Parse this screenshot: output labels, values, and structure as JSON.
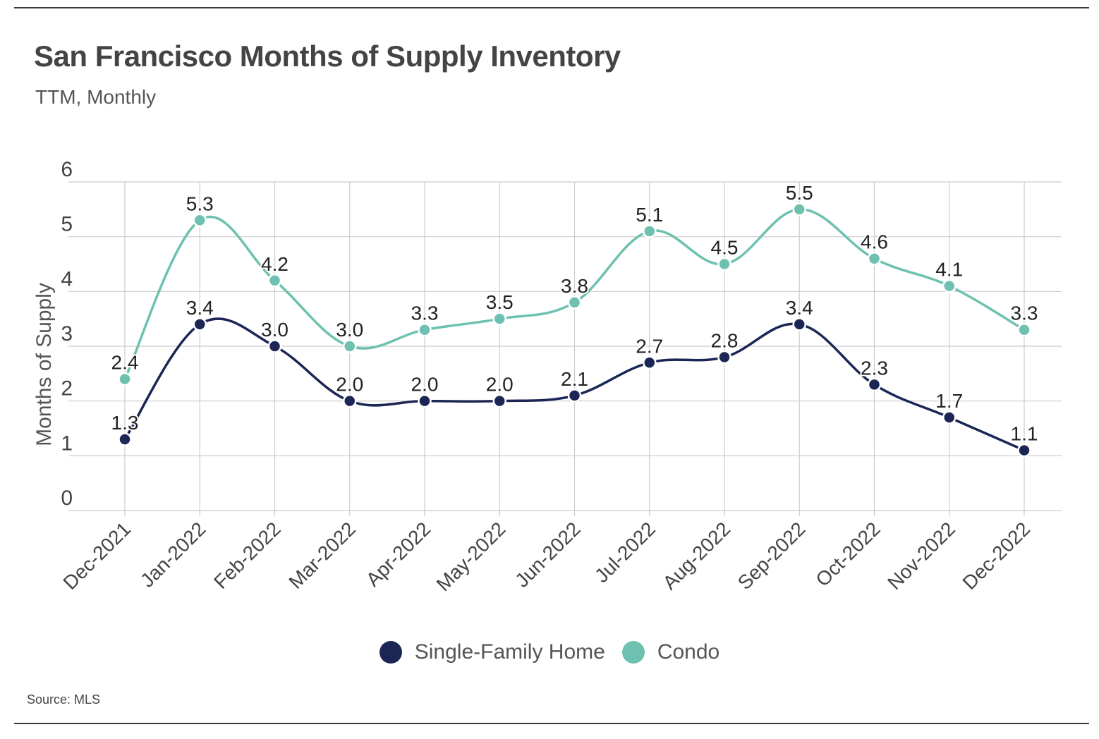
{
  "title": "San Francisco Months of Supply Inventory",
  "subtitle": "TTM, Monthly",
  "source": "Source:  MLS",
  "colors": {
    "sfh": "#1c2655",
    "condo": "#6ec1b0",
    "grid": "#cccccc",
    "axis_text": "#444444"
  },
  "chart_data": {
    "type": "line",
    "title": "San Francisco Months of Supply Inventory",
    "subtitle": "TTM, Monthly",
    "ylabel": "Months of Supply",
    "xlabel": "",
    "ylim": [
      0,
      6
    ],
    "yticks": [
      "0",
      "1",
      "2",
      "3",
      "4",
      "5",
      "6"
    ],
    "grid": true,
    "legend_position": "bottom",
    "categories": [
      "Dec-2021",
      "Jan-2022",
      "Feb-2022",
      "Mar-2022",
      "Apr-2022",
      "May-2022",
      "Jun-2022",
      "Jul-2022",
      "Aug-2022",
      "Sep-2022",
      "Oct-2022",
      "Nov-2022",
      "Dec-2022"
    ],
    "series": [
      {
        "name": "Single-Family Home",
        "color": "#1c2655",
        "values": [
          1.3,
          3.4,
          3.0,
          2.0,
          2.0,
          2.0,
          2.1,
          2.7,
          2.8,
          3.4,
          2.3,
          1.7,
          1.1
        ],
        "labels": [
          "1.3",
          "3.4",
          "3.0",
          "2.0",
          "2.0",
          "2.0",
          "2.1",
          "2.7",
          "2.8",
          "3.4",
          "2.3",
          "1.7",
          "1.1"
        ]
      },
      {
        "name": "Condo",
        "color": "#6ec1b0",
        "values": [
          2.4,
          5.3,
          4.2,
          3.0,
          3.3,
          3.5,
          3.8,
          5.1,
          4.5,
          5.5,
          4.6,
          4.1,
          3.3
        ],
        "labels": [
          "2.4",
          "5.3",
          "4.2",
          "3.0",
          "3.3",
          "3.5",
          "3.8",
          "5.1",
          "4.5",
          "5.5",
          "4.6",
          "4.1",
          "3.3"
        ]
      }
    ]
  }
}
